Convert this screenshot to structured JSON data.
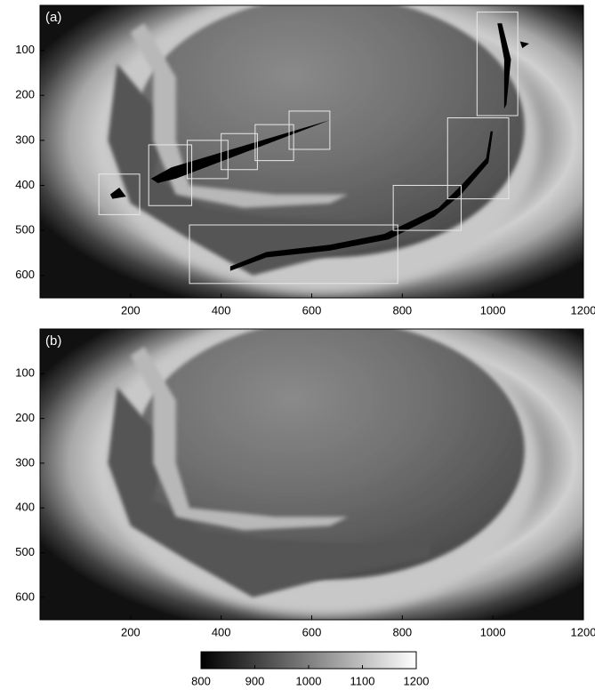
{
  "chart_data": [
    {
      "type": "image",
      "label": "(a)",
      "xlim": [
        0,
        1200
      ],
      "ylim": [
        0,
        650
      ],
      "xticks": [
        200,
        400,
        600,
        800,
        1000,
        1200
      ],
      "yticks": [
        100,
        200,
        300,
        400,
        500,
        600
      ]
    },
    {
      "type": "image",
      "label": "(b)",
      "xlim": [
        0,
        1200
      ],
      "ylim": [
        0,
        650
      ],
      "xticks": [
        200,
        400,
        600,
        800,
        1000,
        1200
      ],
      "yticks": [
        100,
        200,
        300,
        400,
        500,
        600
      ]
    },
    {
      "type": "colorbar",
      "lim": [
        800,
        1200
      ],
      "ticks": [
        800,
        900,
        1000,
        1100,
        1200
      ]
    }
  ]
}
